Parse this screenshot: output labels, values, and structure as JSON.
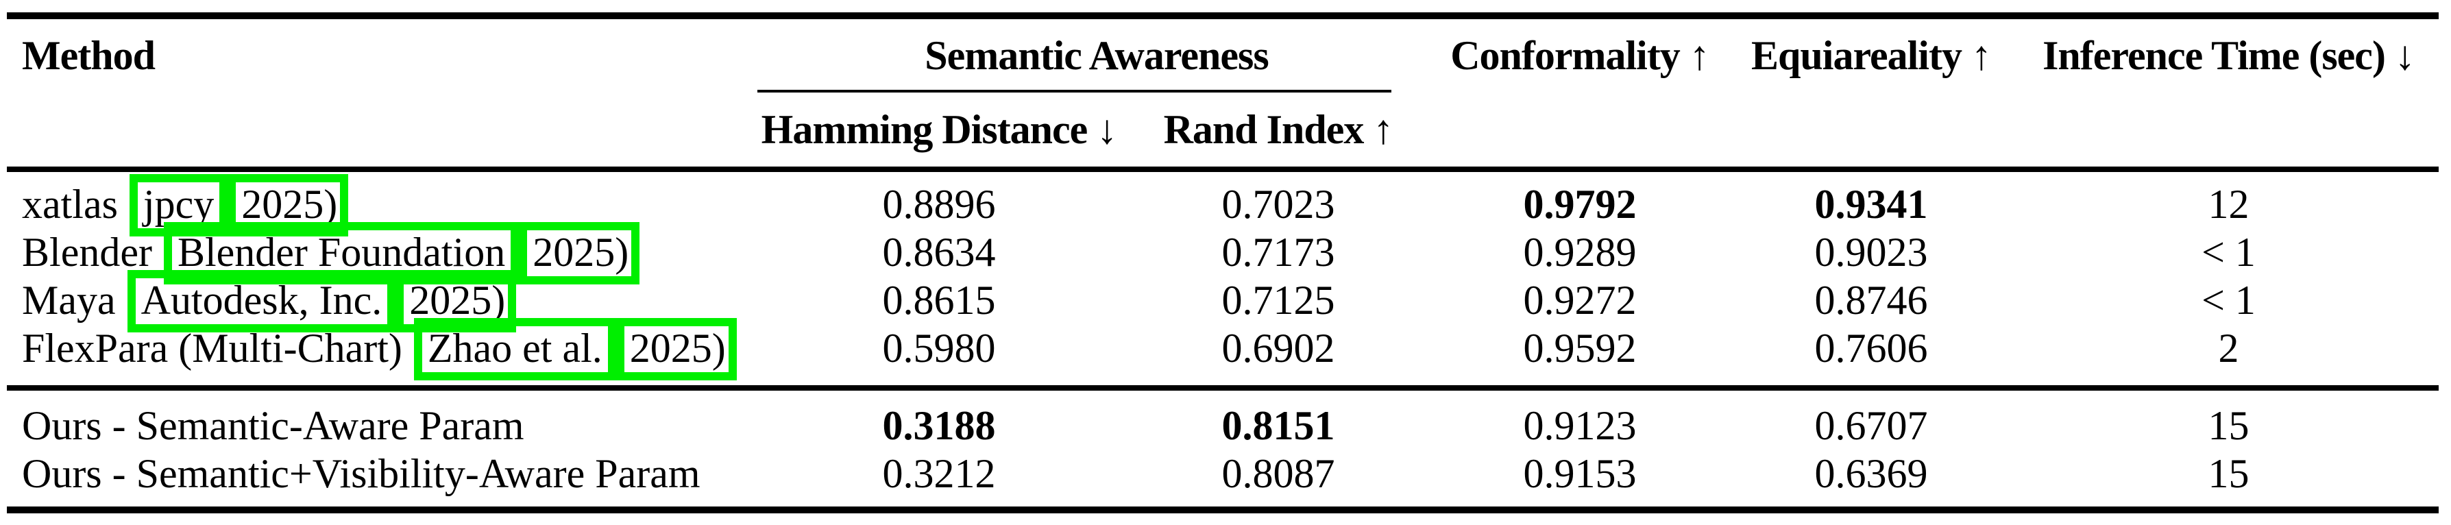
{
  "accent": {
    "link_box_color": "#00ef00",
    "rule_color": "#000000"
  },
  "table": {
    "headers": {
      "method": "Method",
      "semantic_awareness": "Semantic Awareness",
      "hamming": "Hamming Distance ↓",
      "rand": "Rand Index ↑",
      "conformality": "Conformality ↑",
      "equiareality": "Equiareality ↑",
      "inference_time": "Inference Time (sec) ↓"
    },
    "baseline_rows": [
      {
        "prefix": "xatlas",
        "author": "jpcy",
        "cite_open": "(",
        "year": "2025",
        "cite_close": ")",
        "hamming": "0.8896",
        "rand": "0.7023",
        "conformality": "0.9792",
        "equiareality": "0.9341",
        "time": "12",
        "bold_fields": [
          "conformality",
          "equiareality"
        ]
      },
      {
        "prefix": "Blender",
        "author": "Blender Foundation",
        "cite_open": "(",
        "year": "2025",
        "cite_close": ")",
        "hamming": "0.8634",
        "rand": "0.7173",
        "conformality": "0.9289",
        "equiareality": "0.9023",
        "time": "< 1",
        "bold_fields": []
      },
      {
        "prefix": "Maya",
        "author": "Autodesk, Inc.",
        "cite_open": "(",
        "year": "2025",
        "cite_close": ")",
        "hamming": "0.8615",
        "rand": "0.7125",
        "conformality": "0.9272",
        "equiareality": "0.8746",
        "time": "< 1",
        "bold_fields": []
      },
      {
        "prefix": "FlexPara (Multi-Chart)",
        "author": "Zhao et al.",
        "cite_open": "(",
        "year": "2025",
        "cite_close": ")",
        "hamming": "0.5980",
        "rand": "0.6902",
        "conformality": "0.9592",
        "equiareality": "0.7606",
        "time": "2",
        "bold_fields": []
      }
    ],
    "ours_rows": [
      {
        "prefix": "Ours - Semantic-Aware Param",
        "hamming": "0.3188",
        "rand": "0.8151",
        "conformality": "0.9123",
        "equiareality": "0.6707",
        "time": "15",
        "bold_fields": [
          "hamming",
          "rand"
        ]
      },
      {
        "prefix": "Ours - Semantic+Visibility-Aware Param",
        "hamming": "0.3212",
        "rand": "0.8087",
        "conformality": "0.9153",
        "equiareality": "0.6369",
        "time": "15",
        "bold_fields": []
      }
    ]
  }
}
